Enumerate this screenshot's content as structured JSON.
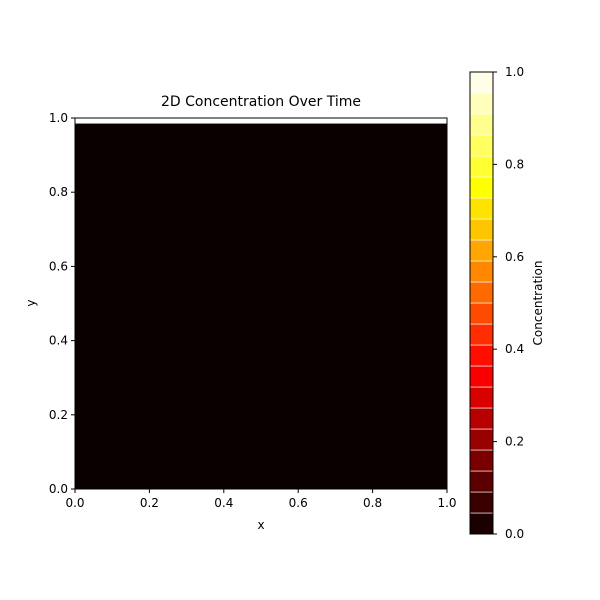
{
  "chart_data": [
    {
      "type": "heatmap",
      "title": "2D Concentration Over Time",
      "xlabel": "x",
      "ylabel": "y",
      "xlim": [
        0.0,
        1.0
      ],
      "ylim": [
        0.0,
        1.0
      ],
      "xticks": [
        "0.0",
        "0.2",
        "0.4",
        "0.6",
        "0.8",
        "1.0"
      ],
      "yticks": [
        "0.0",
        "0.2",
        "0.4",
        "0.6",
        "0.8",
        "1.0"
      ],
      "filled_region": {
        "x": [
          0.0,
          1.0
        ],
        "y": [
          0.0,
          0.985
        ],
        "value": 0.0
      },
      "fill_color": "#0b0000"
    },
    {
      "type": "colorbar",
      "label": "Concentration",
      "range": [
        0.0,
        1.0
      ],
      "ticks": [
        "0.0",
        "0.2",
        "0.4",
        "0.6",
        "0.8",
        "1.0"
      ],
      "levels": 22,
      "colormap": "hot",
      "edge_color": "#ffffff"
    }
  ]
}
